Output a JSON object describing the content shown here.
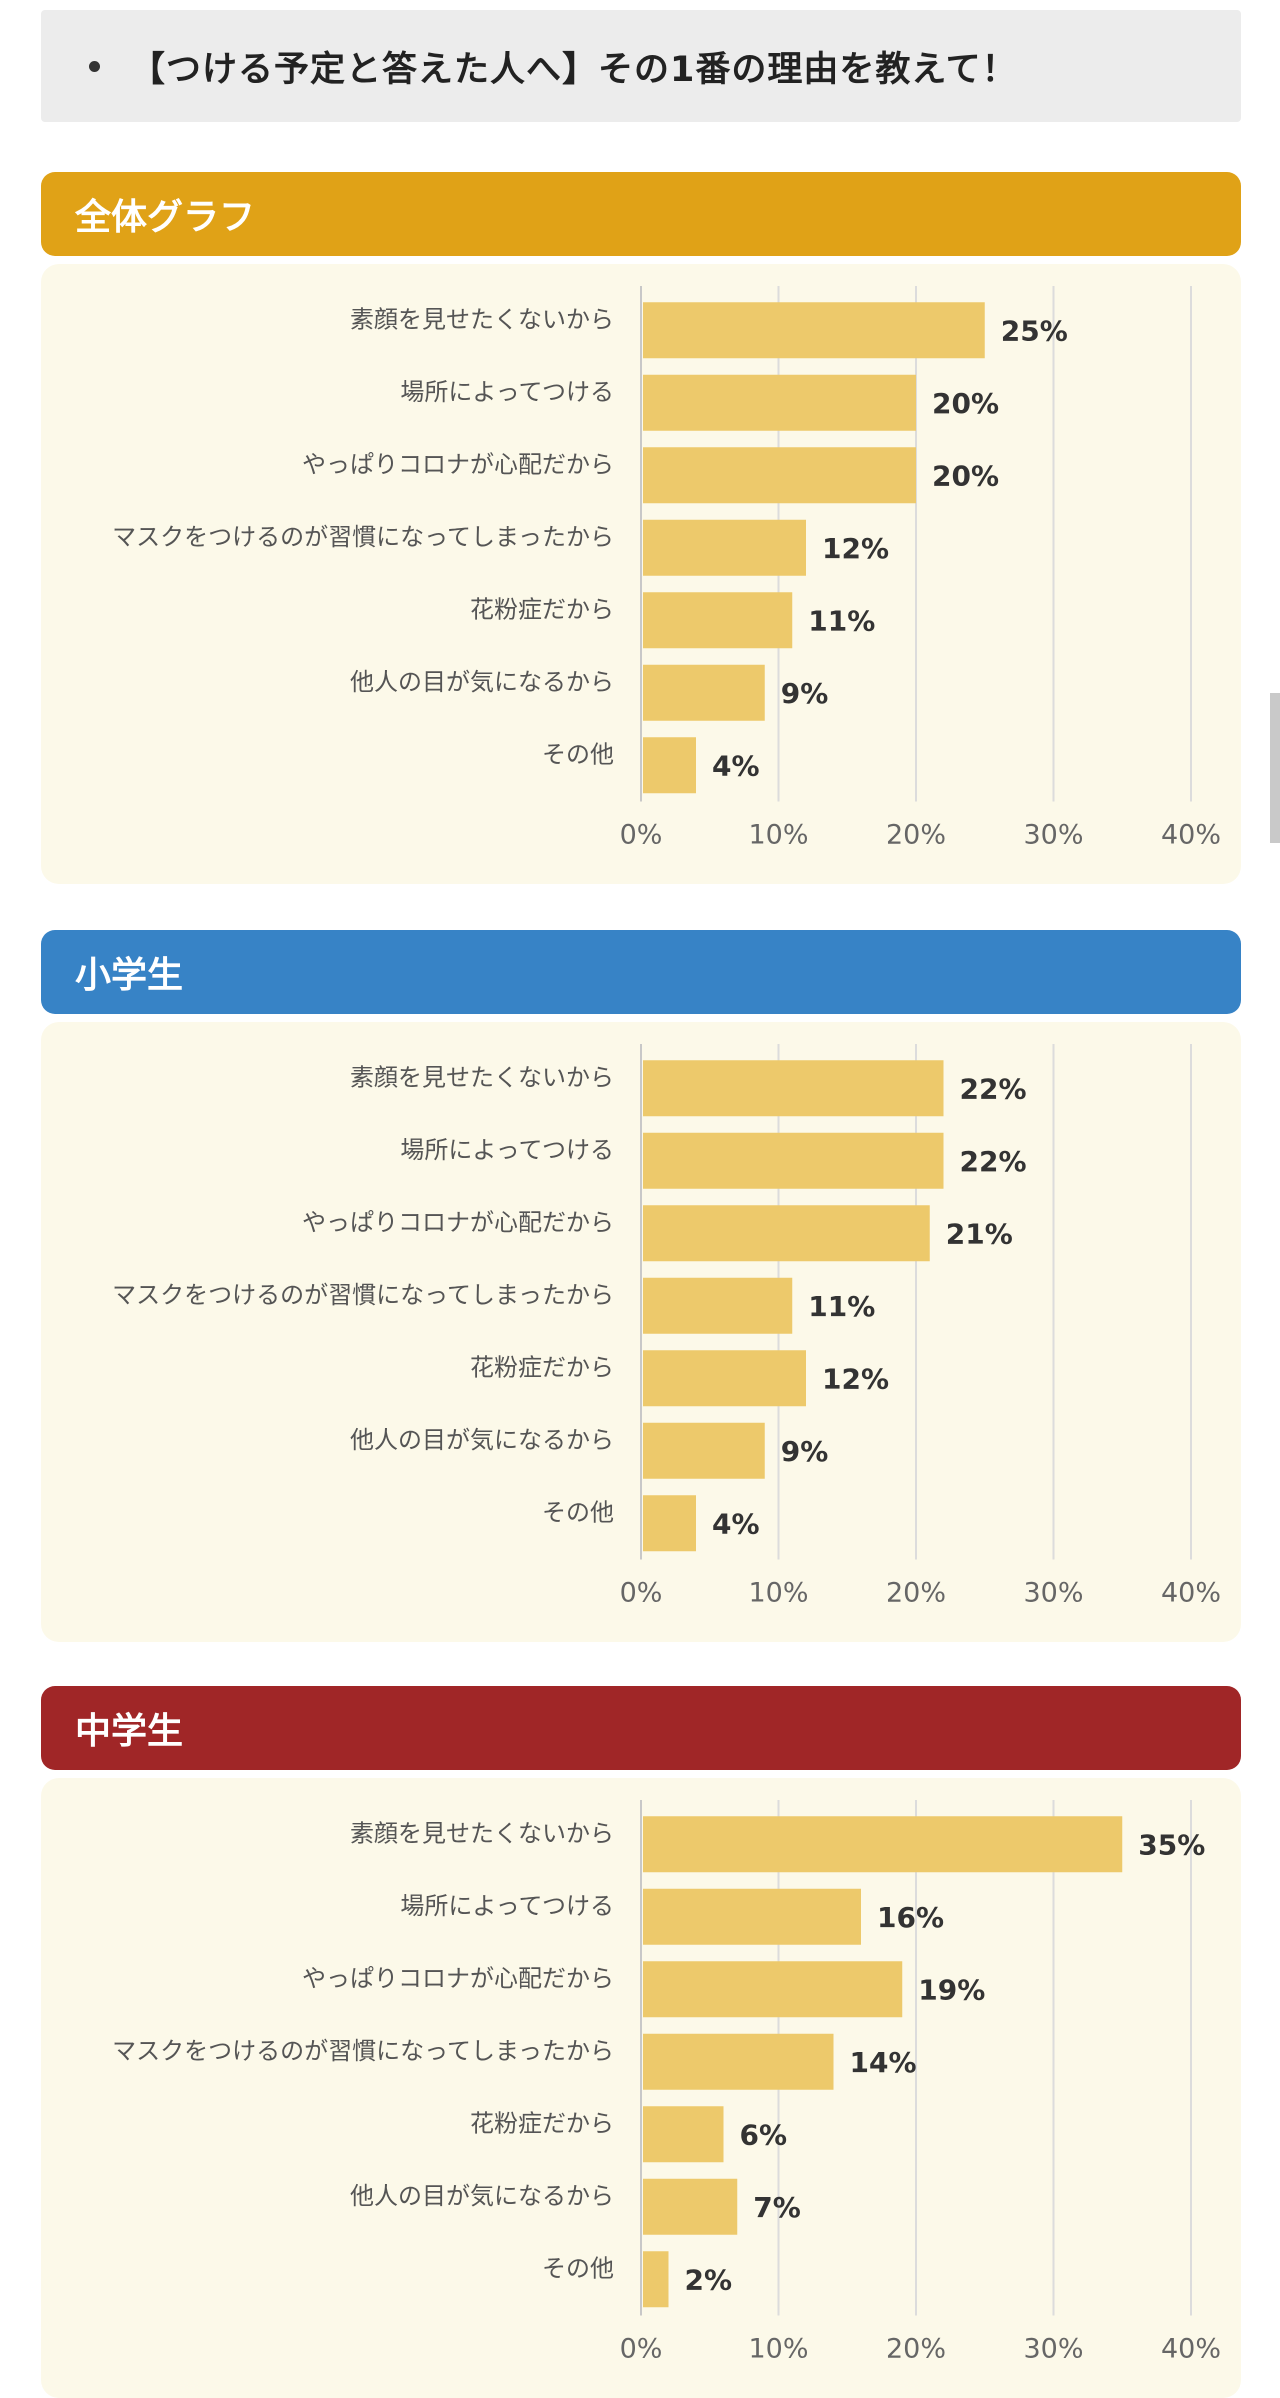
{
  "question": {
    "text": "【つける予定と答えた人へ】その1番の理由を教えて！"
  },
  "sections": [
    {
      "title": "全体グラフ",
      "color": "#e0a217"
    },
    {
      "title": "小学生",
      "color": "#3783c6"
    },
    {
      "title": "中学生",
      "color": "#a02627"
    }
  ],
  "bar_color": "#edc96b",
  "chart_data": [
    {
      "type": "bar",
      "orientation": "horizontal",
      "categories": [
        "素顔を見せたくないから",
        "場所によってつける",
        "やっぱりコロナが心配だから",
        "マスクをつけるのが習慣になってしまったから",
        "花粉症だから",
        "他人の目が気になるから",
        "その他"
      ],
      "values": [
        25,
        20,
        20,
        12,
        11,
        9,
        4
      ],
      "data_labels": [
        "25%",
        "20%",
        "20%",
        "12%",
        "11%",
        "9%",
        "4%"
      ],
      "xlim": [
        0,
        40
      ],
      "xticks": [
        "0%",
        "10%",
        "20%",
        "30%",
        "40%"
      ],
      "grid": true
    },
    {
      "type": "bar",
      "orientation": "horizontal",
      "categories": [
        "素顔を見せたくないから",
        "場所によってつける",
        "やっぱりコロナが心配だから",
        "マスクをつけるのが習慣になってしまったから",
        "花粉症だから",
        "他人の目が気になるから",
        "その他"
      ],
      "values": [
        22,
        22,
        21,
        11,
        12,
        9,
        4
      ],
      "data_labels": [
        "22%",
        "22%",
        "21%",
        "11%",
        "12%",
        "9%",
        "4%"
      ],
      "xlim": [
        0,
        40
      ],
      "xticks": [
        "0%",
        "10%",
        "20%",
        "30%",
        "40%"
      ],
      "grid": true
    },
    {
      "type": "bar",
      "orientation": "horizontal",
      "categories": [
        "素顔を見せたくないから",
        "場所によってつける",
        "やっぱりコロナが心配だから",
        "マスクをつけるのが習慣になってしまったから",
        "花粉症だから",
        "他人の目が気になるから",
        "その他"
      ],
      "values": [
        35,
        16,
        19,
        14,
        6,
        7,
        2
      ],
      "data_labels": [
        "35%",
        "16%",
        "19%",
        "14%",
        "6%",
        "7%",
        "2%"
      ],
      "xlim": [
        0,
        40
      ],
      "xticks": [
        "0%",
        "10%",
        "20%",
        "30%",
        "40%"
      ],
      "grid": true
    }
  ]
}
